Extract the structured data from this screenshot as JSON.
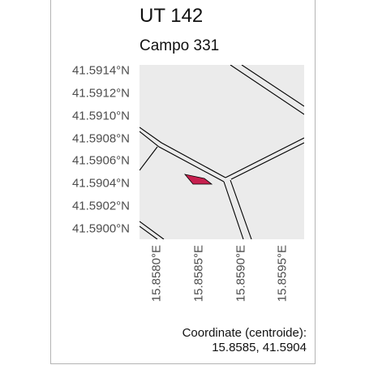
{
  "header": {
    "title": "UT 142",
    "subtitle": "Campo 331"
  },
  "axes": {
    "lat_labels": [
      "41.5914°N",
      "41.5912°N",
      "41.5910°N",
      "41.5908°N",
      "41.5906°N",
      "41.5904°N",
      "41.5902°N",
      "41.5900°N"
    ],
    "lon_labels": [
      "15.8580°E",
      "15.8585°E",
      "15.8590°E",
      "15.8595°E"
    ]
  },
  "colors": {
    "map_background": "#ebebeb",
    "parcel_fill": "#c7204f",
    "road_line": "#000000"
  },
  "footer": {
    "caption_label": "Coordinate (centroide):",
    "coords": "15.8585, 41.5904"
  }
}
